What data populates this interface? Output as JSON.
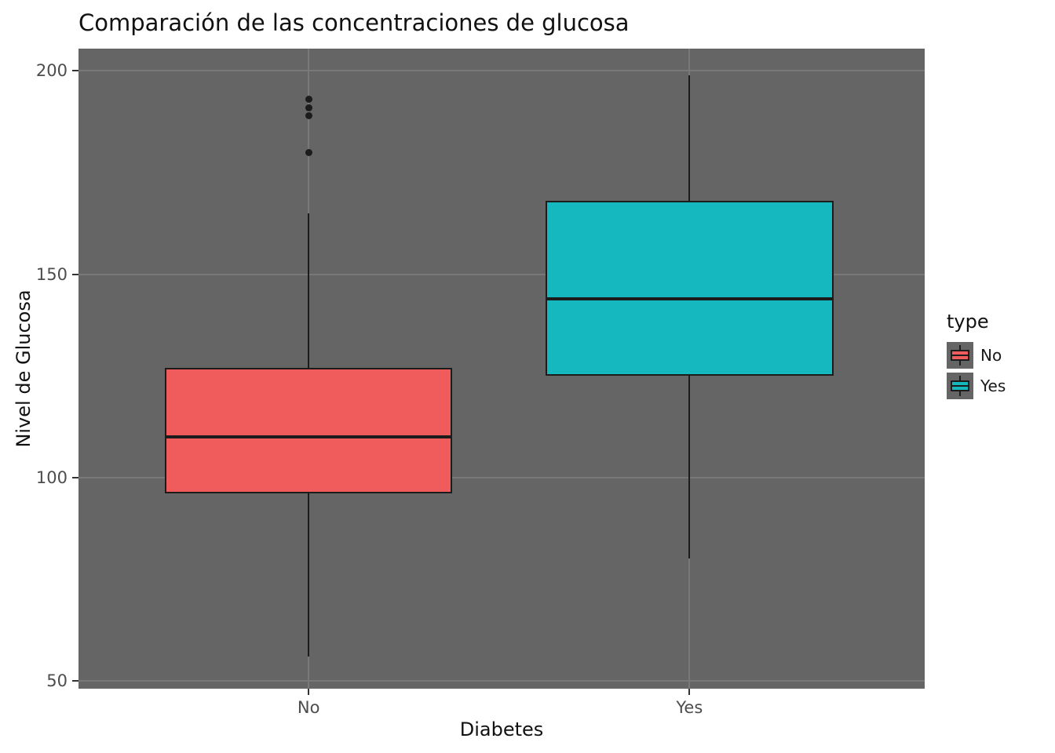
{
  "chart_data": {
    "type": "boxplot",
    "title": "Comparación de las concentraciones de glucosa",
    "xlabel": "Diabetes",
    "ylabel": "Nivel de Glucosa",
    "categories": [
      "No",
      "Yes"
    ],
    "ylim": [
      48,
      205.5
    ],
    "yticks": [
      50,
      100,
      150,
      200
    ],
    "grid": "major-on-dark-panel",
    "legend_position": "right",
    "series": [
      {
        "category": "No",
        "fill": "#F05B5B",
        "whisker_low": 56,
        "q1": 96,
        "median": 110,
        "q3": 127,
        "whisker_high": 165,
        "outliers": [
          180,
          189,
          191,
          193
        ]
      },
      {
        "category": "Yes",
        "fill": "#14B8BE",
        "whisker_low": 80,
        "q1": 125,
        "median": 144,
        "q3": 168,
        "whisker_high": 199,
        "outliers": []
      }
    ],
    "legend": {
      "title": "type",
      "entries": [
        {
          "label": "No",
          "color": "#F05B5B"
        },
        {
          "label": "Yes",
          "color": "#14B8BE"
        }
      ]
    },
    "style": {
      "panel_bg": "#656565",
      "grid_color": "#787878",
      "stroke": "#1C1C1C",
      "tick_label_color": "#4D4D4D",
      "text_color": "#111111"
    }
  }
}
